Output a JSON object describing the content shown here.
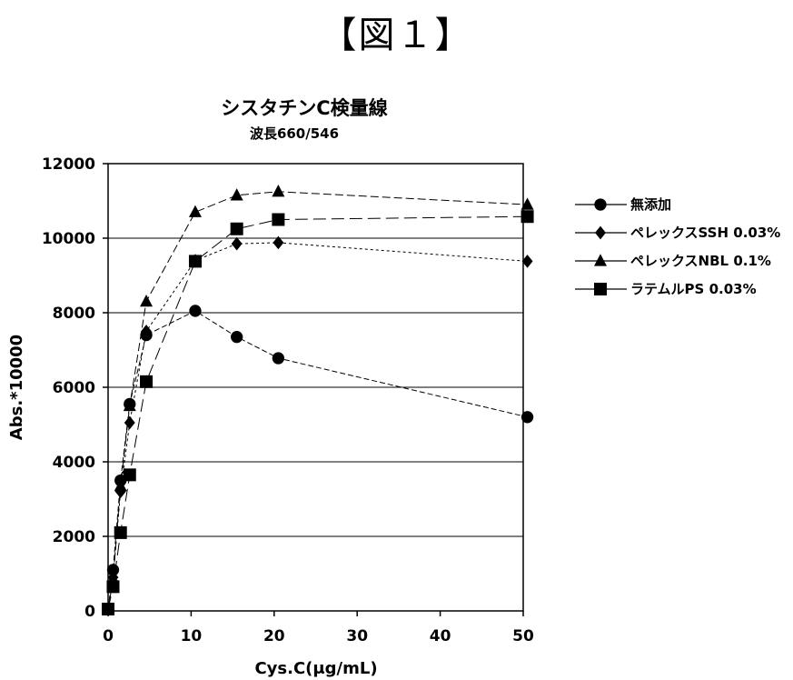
{
  "figure_label": "【図１】",
  "chart_data": {
    "type": "line",
    "title": "シスタチンC検量線",
    "subtitle": "波長660/546",
    "xlabel": "Cys.C(μg/mL)",
    "ylabel": "Abs.*10000",
    "xlim": [
      0,
      50
    ],
    "ylim": [
      0,
      12000
    ],
    "xticks": [
      0,
      10,
      20,
      30,
      40,
      50
    ],
    "yticks": [
      0,
      2000,
      4000,
      6000,
      8000,
      10000,
      12000
    ],
    "grid": "horizontal",
    "legend": "right",
    "series": [
      {
        "name": "無添加",
        "marker": "circle",
        "x": [
          0,
          0.6,
          1.5,
          2.6,
          4.6,
          10.5,
          15.5,
          20.5,
          50.5
        ],
        "y": [
          50,
          1100,
          3500,
          5550,
          7400,
          8050,
          7350,
          6780,
          5200
        ]
      },
      {
        "name": "ペレックスSSH 0.03%",
        "marker": "diamond",
        "x": [
          0,
          0.6,
          1.5,
          2.6,
          4.6,
          10.5,
          15.5,
          20.5,
          50.5
        ],
        "y": [
          50,
          900,
          3200,
          5050,
          7500,
          9400,
          9850,
          9880,
          9380
        ]
      },
      {
        "name": "ペレックスNBL 0.1%",
        "marker": "triangle",
        "x": [
          0,
          0.6,
          1.5,
          2.6,
          4.6,
          10.5,
          15.5,
          20.5,
          50.5
        ],
        "y": [
          50,
          850,
          3350,
          5500,
          8300,
          10700,
          11150,
          11250,
          10900
        ]
      },
      {
        "name": "ラテムルPS 0.03%",
        "marker": "square",
        "x": [
          0,
          0.6,
          1.5,
          2.6,
          4.6,
          10.5,
          15.5,
          20.5,
          50.5
        ],
        "y": [
          50,
          650,
          2100,
          3650,
          6150,
          9380,
          10250,
          10500,
          10580
        ]
      }
    ]
  }
}
